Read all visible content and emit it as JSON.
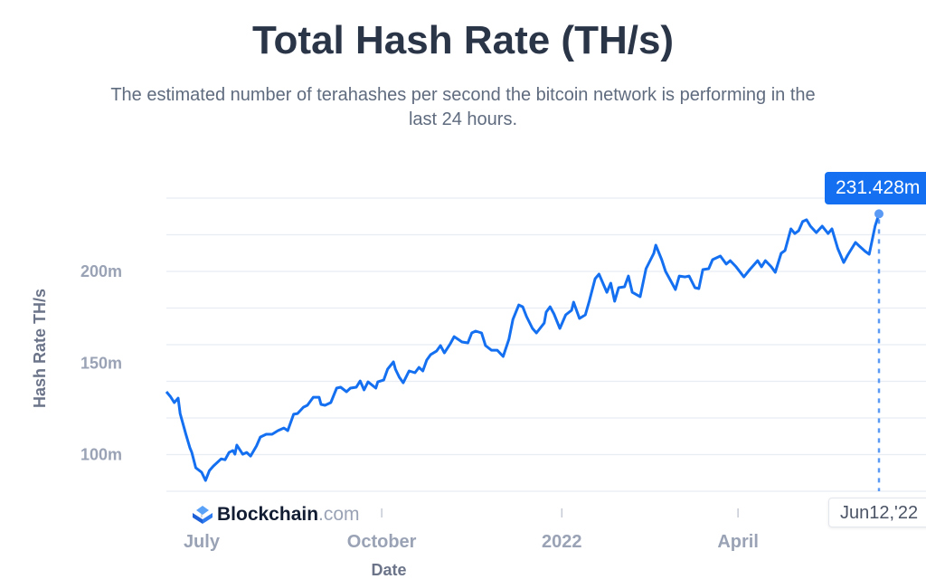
{
  "header": {
    "title": "Total Hash Rate (TH/s)",
    "subtitle": "The estimated number of terahashes per second the bitcoin network is performing in the last 24 hours."
  },
  "logo": {
    "name": "Blockchain",
    "suffix": ".com"
  },
  "tooltip": {
    "value": "231.428m",
    "date": "Jun12,'22"
  },
  "colors": {
    "line": "#1470f0",
    "grid": "#e8ecf3",
    "marker": "#5a9af5"
  },
  "chart_data": {
    "type": "line",
    "title": "Total Hash Rate (TH/s)",
    "xlabel": "Date",
    "ylabel": "Hash Rate TH/s",
    "ylim": [
      80,
      240
    ],
    "xlim": [
      "2021-06-13",
      "2022-06-12"
    ],
    "grid": true,
    "y_gridlines": [
      80,
      100,
      120,
      140,
      160,
      180,
      200,
      220,
      240
    ],
    "y_ticks": [
      {
        "value": 100,
        "label": "100m"
      },
      {
        "value": 150,
        "label": "150m"
      },
      {
        "value": 200,
        "label": "200m"
      }
    ],
    "x_ticks": [
      {
        "date": "2021-07-01",
        "label": "July"
      },
      {
        "date": "2021-10-01",
        "label": "October"
      },
      {
        "date": "2022-01-01",
        "label": "2022"
      },
      {
        "date": "2022-04-01",
        "label": "April"
      }
    ],
    "unit_suffix": "m",
    "series": [
      {
        "points": [
          [
            "2021-06-13",
            134.3
          ],
          [
            "2021-06-15",
            131.8
          ],
          [
            "2021-06-17",
            128.4
          ],
          [
            "2021-06-19",
            130.8
          ],
          [
            "2021-06-20",
            122.4
          ],
          [
            "2021-06-23",
            111.0
          ],
          [
            "2021-06-25",
            103.7
          ],
          [
            "2021-06-26",
            101.2
          ],
          [
            "2021-06-28",
            92.8
          ],
          [
            "2021-07-01",
            90.3
          ],
          [
            "2021-07-03",
            85.9
          ],
          [
            "2021-07-05",
            91.3
          ],
          [
            "2021-07-07",
            93.8
          ],
          [
            "2021-07-11",
            97.7
          ],
          [
            "2021-07-13",
            97.2
          ],
          [
            "2021-07-15",
            101.2
          ],
          [
            "2021-07-17",
            102.2
          ],
          [
            "2021-07-18",
            100.2
          ],
          [
            "2021-07-19",
            105.2
          ],
          [
            "2021-07-22",
            100.2
          ],
          [
            "2021-07-24",
            101.2
          ],
          [
            "2021-07-26",
            99.2
          ],
          [
            "2021-07-29",
            104.7
          ],
          [
            "2021-07-31",
            109.6
          ],
          [
            "2021-08-03",
            111.1
          ],
          [
            "2021-08-06",
            111.1
          ],
          [
            "2021-08-09",
            113.1
          ],
          [
            "2021-08-12",
            114.5
          ],
          [
            "2021-08-14",
            113.1
          ],
          [
            "2021-08-17",
            122.0
          ],
          [
            "2021-08-19",
            122.4
          ],
          [
            "2021-08-22",
            125.9
          ],
          [
            "2021-08-24",
            126.9
          ],
          [
            "2021-08-27",
            131.3
          ],
          [
            "2021-08-30",
            131.3
          ],
          [
            "2021-08-31",
            127.4
          ],
          [
            "2021-09-02",
            126.9
          ],
          [
            "2021-09-05",
            128.4
          ],
          [
            "2021-09-08",
            136.3
          ],
          [
            "2021-09-10",
            136.8
          ],
          [
            "2021-09-13",
            134.3
          ],
          [
            "2021-09-15",
            136.3
          ],
          [
            "2021-09-18",
            136.8
          ],
          [
            "2021-09-20",
            140.2
          ],
          [
            "2021-09-22",
            135.3
          ],
          [
            "2021-09-24",
            139.7
          ],
          [
            "2021-09-28",
            136.3
          ],
          [
            "2021-09-29",
            139.7
          ],
          [
            "2021-10-02",
            140.7
          ],
          [
            "2021-10-04",
            146.6
          ],
          [
            "2021-10-07",
            150.6
          ],
          [
            "2021-10-08",
            146.6
          ],
          [
            "2021-10-10",
            142.2
          ],
          [
            "2021-10-12",
            139.2
          ],
          [
            "2021-10-15",
            145.7
          ],
          [
            "2021-10-18",
            144.7
          ],
          [
            "2021-10-20",
            147.6
          ],
          [
            "2021-10-22",
            145.7
          ],
          [
            "2021-10-24",
            151.6
          ],
          [
            "2021-10-26",
            154.6
          ],
          [
            "2021-10-29",
            156.5
          ],
          [
            "2021-10-31",
            159.5
          ],
          [
            "2021-11-02",
            155.5
          ],
          [
            "2021-11-05",
            160.5
          ],
          [
            "2021-11-07",
            164.4
          ],
          [
            "2021-11-11",
            161.5
          ],
          [
            "2021-11-14",
            161.0
          ],
          [
            "2021-11-16",
            166.4
          ],
          [
            "2021-11-18",
            167.4
          ],
          [
            "2021-11-21",
            166.4
          ],
          [
            "2021-11-23",
            159.5
          ],
          [
            "2021-11-26",
            157.0
          ],
          [
            "2021-11-29",
            157.0
          ],
          [
            "2021-12-02",
            153.6
          ],
          [
            "2021-12-05",
            163.0
          ],
          [
            "2021-12-07",
            173.8
          ],
          [
            "2021-12-10",
            181.7
          ],
          [
            "2021-12-12",
            180.7
          ],
          [
            "2021-12-14",
            175.3
          ],
          [
            "2021-12-17",
            168.9
          ],
          [
            "2021-12-19",
            166.4
          ],
          [
            "2021-12-23",
            171.8
          ],
          [
            "2021-12-24",
            177.8
          ],
          [
            "2021-12-26",
            180.7
          ],
          [
            "2021-12-28",
            176.8
          ],
          [
            "2021-12-31",
            168.9
          ],
          [
            "2022-01-03",
            176.3
          ],
          [
            "2022-01-06",
            178.8
          ],
          [
            "2022-01-07",
            183.2
          ],
          [
            "2022-01-10",
            174.3
          ],
          [
            "2022-01-13",
            176.3
          ],
          [
            "2022-01-15",
            183.7
          ],
          [
            "2022-01-18",
            196.0
          ],
          [
            "2022-01-20",
            198.5
          ],
          [
            "2022-01-24",
            188.6
          ],
          [
            "2022-01-26",
            193.6
          ],
          [
            "2022-01-28",
            183.7
          ],
          [
            "2022-01-30",
            191.1
          ],
          [
            "2022-02-02",
            191.6
          ],
          [
            "2022-02-04",
            197.5
          ],
          [
            "2022-02-06",
            188.6
          ],
          [
            "2022-02-10",
            186.2
          ],
          [
            "2022-02-13",
            201.5
          ],
          [
            "2022-02-17",
            209.9
          ],
          [
            "2022-02-18",
            214.3
          ],
          [
            "2022-02-21",
            206.4
          ],
          [
            "2022-02-23",
            200.0
          ],
          [
            "2022-02-26",
            194.1
          ],
          [
            "2022-02-28",
            190.1
          ],
          [
            "2022-03-02",
            197.5
          ],
          [
            "2022-03-05",
            197.0
          ],
          [
            "2022-03-07",
            197.5
          ],
          [
            "2022-03-10",
            191.1
          ],
          [
            "2022-03-12",
            190.6
          ],
          [
            "2022-03-14",
            201.0
          ],
          [
            "2022-03-17",
            201.5
          ],
          [
            "2022-03-19",
            206.4
          ],
          [
            "2022-03-23",
            208.4
          ],
          [
            "2022-03-26",
            204.0
          ],
          [
            "2022-03-28",
            205.9
          ],
          [
            "2022-03-31",
            202.5
          ],
          [
            "2022-04-04",
            197.0
          ],
          [
            "2022-04-07",
            201.0
          ],
          [
            "2022-04-11",
            205.9
          ],
          [
            "2022-04-13",
            202.5
          ],
          [
            "2022-04-15",
            205.9
          ],
          [
            "2022-04-18",
            202.5
          ],
          [
            "2022-04-20",
            199.5
          ],
          [
            "2022-04-23",
            209.9
          ],
          [
            "2022-04-25",
            211.4
          ],
          [
            "2022-04-28",
            223.2
          ],
          [
            "2022-04-30",
            220.7
          ],
          [
            "2022-05-02",
            222.2
          ],
          [
            "2022-05-04",
            227.2
          ],
          [
            "2022-05-06",
            228.2
          ],
          [
            "2022-05-08",
            224.7
          ],
          [
            "2022-05-11",
            221.2
          ],
          [
            "2022-05-14",
            224.7
          ],
          [
            "2022-05-17",
            220.7
          ],
          [
            "2022-05-19",
            223.2
          ],
          [
            "2022-05-22",
            212.4
          ],
          [
            "2022-05-25",
            204.9
          ],
          [
            "2022-05-27",
            208.9
          ],
          [
            "2022-05-31",
            215.8
          ],
          [
            "2022-06-02",
            213.8
          ],
          [
            "2022-06-05",
            210.9
          ],
          [
            "2022-06-07",
            209.4
          ],
          [
            "2022-06-10",
            224.7
          ],
          [
            "2022-06-12",
            231.428
          ]
        ]
      }
    ]
  }
}
